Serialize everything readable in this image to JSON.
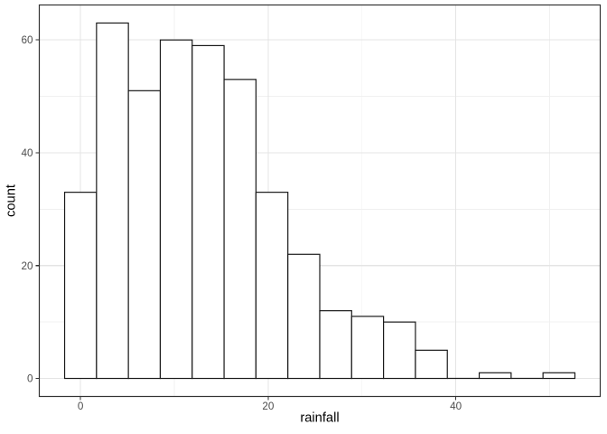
{
  "chart_data": {
    "type": "bar",
    "subtype": "histogram",
    "xlabel": "rainfall",
    "ylabel": "count",
    "bin_start": -1.7,
    "bin_width": 3.4,
    "bin_centers": [
      0,
      3.4,
      6.8,
      10.2,
      13.6,
      17,
      20.4,
      23.8,
      27.2,
      30.6,
      34,
      37.4,
      40.8,
      44.2,
      47.6,
      51
    ],
    "counts": [
      33,
      63,
      51,
      60,
      59,
      53,
      33,
      22,
      12,
      11,
      10,
      5,
      0,
      1,
      0,
      1
    ],
    "x_ticks": [
      0,
      20,
      40
    ],
    "x_minor_gridlines": [
      10,
      30,
      50
    ],
    "y_ticks": [
      0,
      20,
      40,
      60
    ],
    "y_minor_gridlines": [
      10,
      30,
      50
    ],
    "xlim": [
      -4.4,
      55.4
    ],
    "ylim": [
      -3.2,
      66.2
    ],
    "grid": "on",
    "legend_position": "none",
    "colors": {
      "background": "#ffffff",
      "panel_background": "#ffffff",
      "bar_fill": "#ffffff",
      "bar_stroke": "#1a1a1a",
      "panel_border": "#333333",
      "grid_major": "#e4e4e4",
      "grid_minor": "#f0f0f0",
      "tick_mark": "#333333",
      "tick_label": "#4d4d4d",
      "axis_title": "#000000"
    }
  }
}
